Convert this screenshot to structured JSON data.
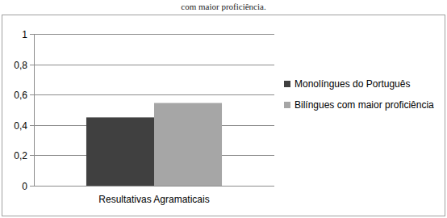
{
  "chart_data": {
    "type": "bar",
    "title": "com maior proficiência.",
    "categories": [
      "Resultativas Agramaticais"
    ],
    "series": [
      {
        "name": "Monolíngues do Português",
        "color": "#404040",
        "values": [
          0.45
        ]
      },
      {
        "name": "Bilíngues com maior proficiência",
        "color": "#a6a6a6",
        "values": [
          0.545
        ]
      }
    ],
    "ylim": [
      0,
      1
    ],
    "yticks": [
      0,
      {
        "value": 0.2,
        "label": "0,2"
      },
      {
        "value": 0.4,
        "label": "0,4"
      },
      {
        "value": 0.6,
        "label": "0,6"
      },
      {
        "value": 0.8,
        "label": "0,8"
      },
      1
    ],
    "grid": true,
    "legend": "right"
  }
}
